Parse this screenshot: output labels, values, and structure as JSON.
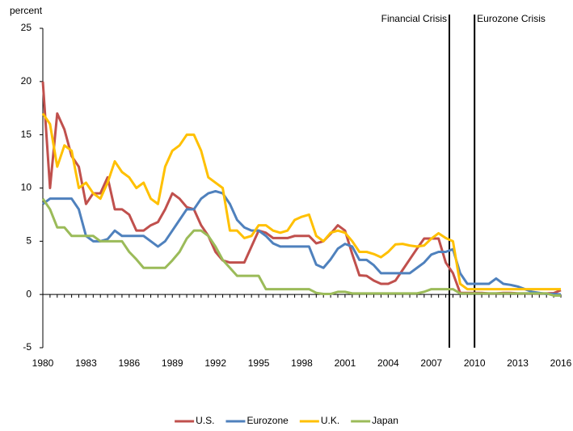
{
  "chart_data": {
    "type": "line",
    "y_label": "percent",
    "x": [
      1980,
      1980.5,
      1981,
      1981.5,
      1982,
      1982.5,
      1983,
      1983.5,
      1984,
      1984.5,
      1985,
      1985.5,
      1986,
      1986.5,
      1987,
      1987.5,
      1988,
      1988.5,
      1989,
      1989.5,
      1990,
      1990.5,
      1991,
      1991.5,
      1992,
      1992.5,
      1993,
      1993.5,
      1994,
      1994.5,
      1995,
      1995.5,
      1996,
      1996.5,
      1997,
      1997.5,
      1998,
      1998.5,
      1999,
      1999.5,
      2000,
      2000.5,
      2001,
      2001.5,
      2002,
      2002.5,
      2003,
      2003.5,
      2004,
      2004.5,
      2005,
      2005.5,
      2006,
      2006.5,
      2007,
      2007.5,
      2008,
      2008.5,
      2009,
      2009.5,
      2010,
      2010.5,
      2011,
      2011.5,
      2012,
      2012.5,
      2013,
      2013.5,
      2014,
      2014.5,
      2015,
      2015.5,
      2016
    ],
    "series": [
      {
        "name": "U.S.",
        "color": "#c0504d",
        "values": [
          20,
          10,
          17,
          15.5,
          13,
          12,
          8.5,
          9.5,
          9.5,
          11,
          8,
          8,
          7.5,
          6,
          6,
          6.5,
          6.8,
          8,
          9.5,
          9,
          8.2,
          8,
          6.5,
          5.5,
          4,
          3.2,
          3,
          3,
          3,
          4.5,
          6,
          5.8,
          5.3,
          5.3,
          5.3,
          5.5,
          5.5,
          5.5,
          4.8,
          5,
          5.7,
          6.5,
          6,
          3.8,
          1.8,
          1.75,
          1.3,
          1,
          1,
          1.3,
          2.3,
          3.3,
          4.3,
          5.25,
          5.25,
          5.25,
          3,
          2,
          0.15,
          0.15,
          0.15,
          0.15,
          0.1,
          0.1,
          0.15,
          0.15,
          0.1,
          0.1,
          0.1,
          0.1,
          0.1,
          0.13,
          0.4
        ]
      },
      {
        "name": "Eurozone",
        "color": "#4f81bd",
        "values": [
          8.5,
          9,
          9,
          9,
          9,
          8,
          5.5,
          5,
          5,
          5.2,
          6,
          5.5,
          5.5,
          5.5,
          5.5,
          5,
          4.5,
          5,
          6,
          7,
          8,
          8,
          9,
          9.5,
          9.7,
          9.5,
          8.5,
          7,
          6.3,
          6,
          6,
          5.5,
          4.8,
          4.5,
          4.5,
          4.5,
          4.5,
          4.5,
          2.8,
          2.5,
          3.3,
          4.3,
          4.75,
          4.5,
          3.25,
          3.25,
          2.75,
          2,
          2,
          2,
          2,
          2,
          2.5,
          3,
          3.75,
          4,
          4,
          4.25,
          2,
          1,
          1,
          1,
          1,
          1.5,
          1,
          0.9,
          0.75,
          0.5,
          0.25,
          0.15,
          0.05,
          0.05,
          0
        ]
      },
      {
        "name": "U.K.",
        "color": "#ffc000",
        "values": [
          17,
          16,
          12,
          14,
          13.5,
          10,
          10.5,
          9.5,
          9,
          10.5,
          12.5,
          11.5,
          11,
          10,
          10.5,
          9,
          8.5,
          12,
          13.5,
          14,
          15,
          15,
          13.5,
          11,
          10.5,
          10,
          6,
          6,
          5.3,
          5.5,
          6.5,
          6.5,
          6,
          5.8,
          6,
          7,
          7.3,
          7.5,
          5.5,
          5,
          5.8,
          6,
          5.8,
          5,
          4,
          4,
          3.8,
          3.5,
          4,
          4.7,
          4.75,
          4.6,
          4.5,
          4.6,
          5.25,
          5.75,
          5.3,
          5,
          1,
          0.5,
          0.5,
          0.5,
          0.5,
          0.5,
          0.5,
          0.5,
          0.5,
          0.5,
          0.5,
          0.5,
          0.5,
          0.5,
          0.5
        ]
      },
      {
        "name": "Japan",
        "color": "#9bbb59",
        "values": [
          9,
          8,
          6.3,
          6.3,
          5.5,
          5.5,
          5.5,
          5.5,
          5,
          5,
          5,
          5,
          4,
          3.3,
          2.5,
          2.5,
          2.5,
          2.5,
          3.2,
          4,
          5.25,
          6,
          6,
          5.5,
          4.5,
          3.25,
          2.5,
          1.75,
          1.75,
          1.75,
          1.75,
          0.5,
          0.5,
          0.5,
          0.5,
          0.5,
          0.5,
          0.5,
          0.15,
          0.05,
          0.05,
          0.25,
          0.25,
          0.1,
          0.1,
          0.1,
          0.1,
          0.1,
          0.1,
          0.1,
          0.1,
          0.1,
          0.1,
          0.25,
          0.5,
          0.5,
          0.5,
          0.5,
          0.1,
          0.1,
          0.1,
          0.1,
          0.1,
          0.1,
          0.1,
          0.1,
          0.1,
          0.1,
          0.1,
          0.1,
          0.1,
          -0.1,
          -0.1
        ]
      }
    ],
    "xlim": [
      1980,
      2016
    ],
    "xticks": [
      1980,
      1983,
      1986,
      1989,
      1992,
      1995,
      1998,
      2001,
      2004,
      2007,
      2010,
      2013,
      2016
    ],
    "ylim": [
      -5,
      25
    ],
    "yticks": [
      -5,
      0,
      5,
      10,
      15,
      20,
      25
    ],
    "annotations": [
      {
        "text": "Financial Crisis",
        "x": 2008.25
      },
      {
        "text": "Eurozone Crisis",
        "x": 2010
      }
    ],
    "legend": "bottom"
  }
}
